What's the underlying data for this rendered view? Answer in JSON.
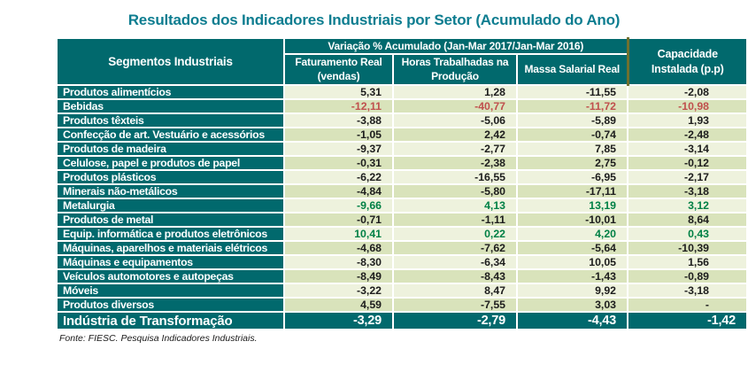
{
  "title": "Resultados dos Indicadores Industriais por Setor (Acumulado do Ano)",
  "source": "Fonte: FIESC. Pesquisa Indicadores Industriais.",
  "colors": {
    "header_teal": "#01696d",
    "title_teal": "#0d7d90",
    "row_light": "#eef2dd",
    "row_dark": "#d9e3bb",
    "negative_highlight_red": "#c0504d",
    "positive_highlight_green": "#008045",
    "capacity_divider_olive": "#70702e"
  },
  "chart_data": {
    "type": "table",
    "title": "Resultados dos Indicadores Industriais por Setor (Acumulado do Ano)",
    "header": {
      "segments": "Segmentos Industriais",
      "variation_group": "Variação % Acumulado (Jan-Mar 2017/Jan-Mar 2016)",
      "columns": [
        "Faturamento Real (vendas)",
        "Horas Trabalhadas na Produção",
        "Massa Salarial Real"
      ],
      "capacity": "Capacidade Instalada (p.p)"
    },
    "rows": [
      {
        "segment": "Produtos alimentícios",
        "values": [
          "5,31",
          "1,28",
          "-11,55",
          "-2,08"
        ],
        "highlight": null
      },
      {
        "segment": "Bebidas",
        "values": [
          "-12,11",
          "-40,77",
          "-11,72",
          "-10,98"
        ],
        "highlight": "red"
      },
      {
        "segment": "Produtos têxteis",
        "values": [
          "-3,88",
          "-5,06",
          "-5,89",
          "1,93"
        ],
        "highlight": null
      },
      {
        "segment": "Confecção de art. Vestuário e acessórios",
        "values": [
          "-1,05",
          "2,42",
          "-0,74",
          "-2,48"
        ],
        "highlight": null
      },
      {
        "segment": "Produtos de madeira",
        "values": [
          "-9,37",
          "-2,77",
          "7,85",
          "-3,14"
        ],
        "highlight": null
      },
      {
        "segment": "Celulose, papel e produtos de papel",
        "values": [
          "-0,31",
          "-2,38",
          "2,75",
          "-0,12"
        ],
        "highlight": null
      },
      {
        "segment": "Produtos plásticos",
        "values": [
          "-6,22",
          "-16,55",
          "-6,95",
          "-2,17"
        ],
        "highlight": null
      },
      {
        "segment": "Minerais não-metálicos",
        "values": [
          "-4,84",
          "-5,80",
          "-17,11",
          "-3,18"
        ],
        "highlight": null
      },
      {
        "segment": "Metalurgia",
        "values": [
          "-9,66",
          "4,13",
          "13,19",
          "3,12"
        ],
        "highlight": "green"
      },
      {
        "segment": "Produtos de metal",
        "values": [
          "-0,71",
          "-1,11",
          "-10,01",
          "8,64"
        ],
        "highlight": null
      },
      {
        "segment": "Equip. informática e produtos eletrônicos",
        "values": [
          "10,41",
          "0,22",
          "4,20",
          "0,43"
        ],
        "highlight": "green"
      },
      {
        "segment": "Máquinas, aparelhos e materiais elétricos",
        "values": [
          "-4,68",
          "-7,62",
          "-5,64",
          "-10,39"
        ],
        "highlight": null
      },
      {
        "segment": "Máquinas e equipamentos",
        "values": [
          "-8,30",
          "-6,34",
          "10,05",
          "1,56"
        ],
        "highlight": null
      },
      {
        "segment": "Veículos automotores e autopeças",
        "values": [
          "-8,49",
          "-8,43",
          "-1,43",
          "-0,89"
        ],
        "highlight": null
      },
      {
        "segment": "Móveis",
        "values": [
          "-3,22",
          "8,47",
          "9,92",
          "-3,18"
        ],
        "highlight": null
      },
      {
        "segment": "Produtos diversos",
        "values": [
          "4,59",
          "-7,55",
          "3,03",
          "-"
        ],
        "highlight": null
      }
    ],
    "total": {
      "segment": "Indústria de Transformação",
      "values": [
        "-3,29",
        "-2,79",
        "-4,43",
        "-1,42"
      ]
    }
  }
}
